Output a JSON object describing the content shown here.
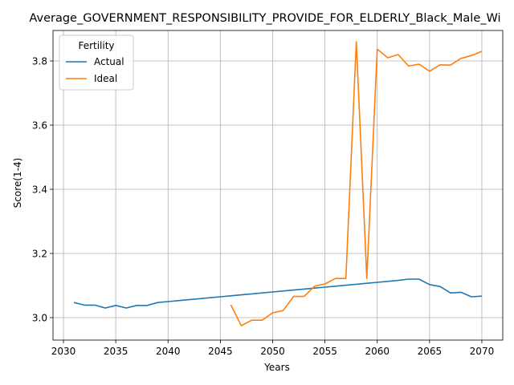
{
  "chart_data": {
    "type": "line",
    "title": "Average_GOVERNMENT_RESPONSIBILITY_PROVIDE_FOR_ELDERLY_Black_Male_Wi",
    "xlabel": "Years",
    "ylabel": "Score(1-4)",
    "xlim": [
      2029,
      2072
    ],
    "ylim": [
      2.93,
      3.895
    ],
    "xticks": [
      2030,
      2035,
      2040,
      2045,
      2050,
      2055,
      2060,
      2065,
      2070
    ],
    "yticks": [
      3.0,
      3.2,
      3.4,
      3.6,
      3.8
    ],
    "grid": true,
    "legend": {
      "title": "Fertility",
      "placement": "top-left"
    },
    "series": [
      {
        "name": "Actual",
        "color": "#1f77b4",
        "x": [
          2031,
          2032,
          2033,
          2034,
          2035,
          2036,
          2037,
          2038,
          2039,
          2040,
          2041,
          2042,
          2043,
          2044,
          2045,
          2046,
          2047,
          2048,
          2049,
          2050,
          2051,
          2052,
          2053,
          2054,
          2055,
          2056,
          2057,
          2058,
          2059,
          2060,
          2061,
          2062,
          2063,
          2064,
          2065,
          2066,
          2067,
          2068,
          2069,
          2070
        ],
        "values": [
          3.047,
          3.039,
          3.039,
          3.03,
          3.038,
          3.03,
          3.038,
          3.038,
          3.047,
          3.05,
          3.053,
          3.056,
          3.059,
          3.062,
          3.065,
          3.068,
          3.071,
          3.074,
          3.077,
          3.08,
          3.083,
          3.086,
          3.089,
          3.092,
          3.095,
          3.098,
          3.101,
          3.104,
          3.107,
          3.11,
          3.113,
          3.116,
          3.12,
          3.12,
          3.103,
          3.097,
          3.077,
          3.079,
          3.065,
          3.067
        ]
      },
      {
        "name": "Ideal",
        "color": "#ff7f0e",
        "x": [
          2046,
          2047,
          2048,
          2049,
          2050,
          2051,
          2052,
          2053,
          2054,
          2055,
          2056,
          2057,
          2058,
          2059,
          2060,
          2061,
          2062,
          2063,
          2064,
          2065,
          2066,
          2067,
          2068,
          2069,
          2070
        ],
        "values": [
          3.04,
          2.975,
          2.992,
          2.992,
          3.015,
          3.022,
          3.066,
          3.066,
          3.098,
          3.105,
          3.122,
          3.122,
          3.86,
          3.122,
          3.837,
          3.81,
          3.82,
          3.784,
          3.79,
          3.768,
          3.788,
          3.787,
          3.808,
          3.817,
          3.83
        ]
      }
    ]
  }
}
